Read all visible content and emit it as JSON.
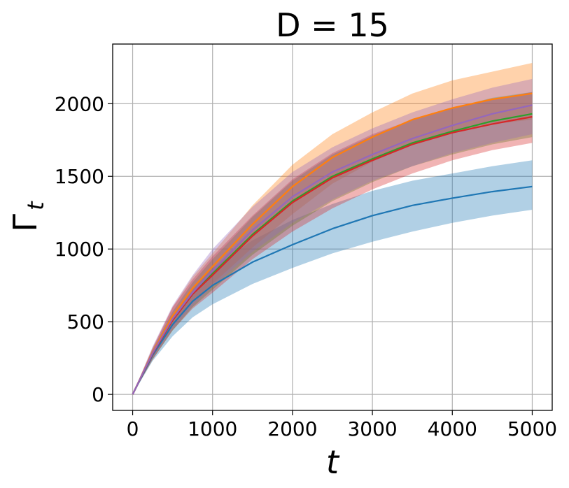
{
  "chart_data": {
    "type": "line",
    "title": "D = 15",
    "xlabel": "t",
    "ylabel_base": "Γ",
    "ylabel_sub": "t",
    "xlim": [
      -250,
      5250
    ],
    "ylim": [
      -110,
      2410
    ],
    "xticks": [
      0,
      1000,
      2000,
      3000,
      4000,
      5000
    ],
    "yticks": [
      0,
      500,
      1000,
      1500,
      2000
    ],
    "xtick_labels": [
      "0",
      "1000",
      "2000",
      "3000",
      "4000",
      "5000"
    ],
    "ytick_labels": [
      "0",
      "500",
      "1000",
      "1500",
      "2000"
    ],
    "grid": true,
    "x": [
      0,
      250,
      500,
      750,
      1000,
      1500,
      2000,
      2500,
      3000,
      3500,
      4000,
      4500,
      5000
    ],
    "series": [
      {
        "name": "blue",
        "color": "#1f77b4",
        "values": [
          0,
          270,
          480,
          640,
          750,
          910,
          1030,
          1140,
          1230,
          1300,
          1350,
          1395,
          1430
        ],
        "lower": [
          0,
          230,
          400,
          530,
          620,
          760,
          870,
          970,
          1050,
          1120,
          1180,
          1230,
          1270
        ],
        "upper": [
          0,
          290,
          540,
          730,
          870,
          1060,
          1200,
          1310,
          1400,
          1470,
          1520,
          1570,
          1610
        ]
      },
      {
        "name": "orange",
        "color": "#ff7f0e",
        "values": [
          0,
          290,
          540,
          730,
          880,
          1170,
          1430,
          1630,
          1770,
          1890,
          1970,
          2030,
          2070
        ],
        "lower": [
          0,
          250,
          470,
          640,
          760,
          1010,
          1240,
          1450,
          1600,
          1720,
          1800,
          1860,
          1890
        ],
        "upper": [
          0,
          320,
          600,
          810,
          970,
          1300,
          1580,
          1790,
          1940,
          2070,
          2160,
          2220,
          2280
        ]
      },
      {
        "name": "green",
        "color": "#2ca02c",
        "values": [
          0,
          280,
          510,
          690,
          830,
          1100,
          1330,
          1500,
          1620,
          1730,
          1810,
          1880,
          1930
        ],
        "lower": [
          0,
          240,
          440,
          600,
          720,
          960,
          1160,
          1330,
          1460,
          1570,
          1650,
          1720,
          1770
        ],
        "upper": [
          0,
          310,
          570,
          770,
          930,
          1220,
          1470,
          1650,
          1780,
          1890,
          1970,
          2040,
          2080
        ]
      },
      {
        "name": "red",
        "color": "#d62728",
        "values": [
          0,
          280,
          510,
          690,
          820,
          1090,
          1320,
          1490,
          1610,
          1720,
          1800,
          1860,
          1910
        ],
        "lower": [
          0,
          240,
          440,
          590,
          700,
          930,
          1120,
          1280,
          1410,
          1520,
          1610,
          1680,
          1730
        ],
        "upper": [
          0,
          320,
          600,
          790,
          950,
          1230,
          1480,
          1660,
          1790,
          1890,
          1970,
          2030,
          2080
        ]
      },
      {
        "name": "purple",
        "color": "#9467bd",
        "values": [
          0,
          285,
          520,
          700,
          850,
          1130,
          1360,
          1530,
          1650,
          1760,
          1850,
          1930,
          1990
        ],
        "lower": [
          0,
          245,
          450,
          610,
          740,
          980,
          1180,
          1340,
          1470,
          1570,
          1660,
          1730,
          1790
        ],
        "upper": [
          0,
          330,
          610,
          820,
          1000,
          1290,
          1530,
          1700,
          1830,
          1940,
          2030,
          2110,
          2170
        ]
      }
    ]
  }
}
